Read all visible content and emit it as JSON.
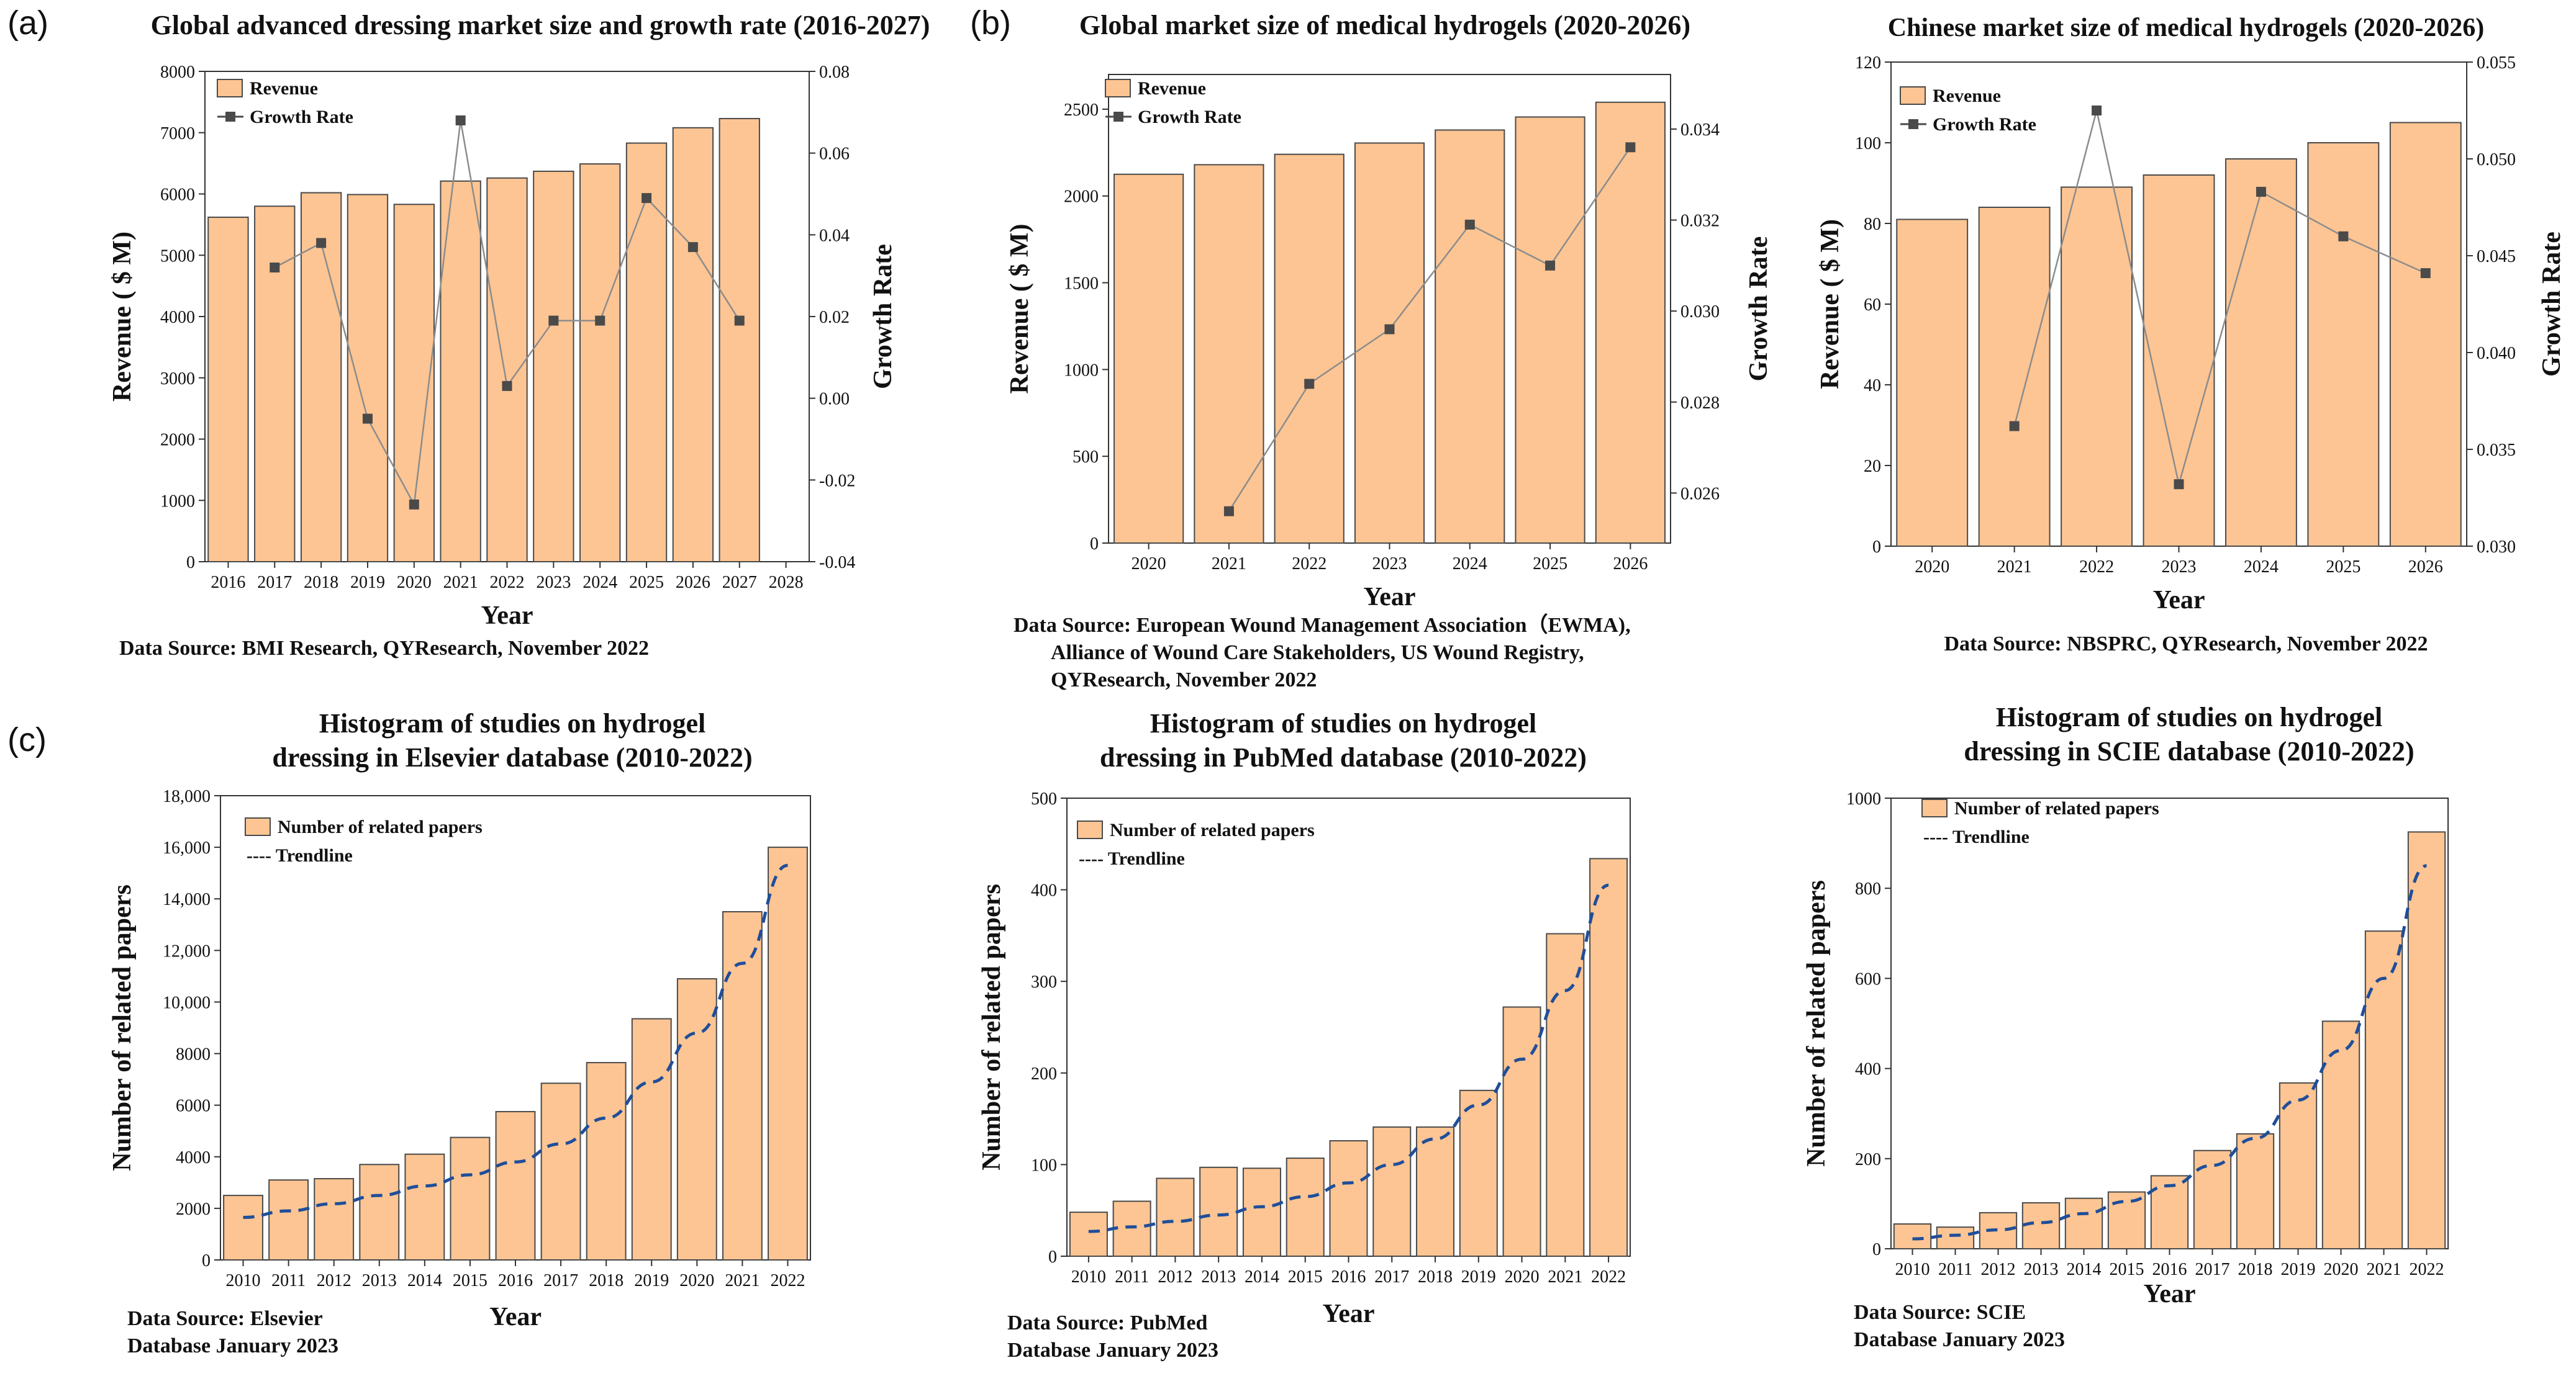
{
  "panel_labels": {
    "a": "(a)",
    "b": "(b)",
    "c": "(c)"
  },
  "colors": {
    "bar_fill": "#FDC593",
    "bar_stroke": "#4a4a4a",
    "line": "#8c8c8c",
    "marker": "#4a4a4a",
    "trend": "#1F4E9A",
    "axis": "#333333",
    "text": "#111111"
  },
  "chart_data": [
    {
      "id": "a",
      "type": "bar",
      "title": "Global advanced dressing market size and growth rate (2016-2027)",
      "xlabel": "Year",
      "ylabel": "Revenue ( $ M)",
      "y2label": "Growth Rate",
      "categories": [
        "2016",
        "2017",
        "2018",
        "2019",
        "2020",
        "2021",
        "2022",
        "2023",
        "2024",
        "2025",
        "2026",
        "2027"
      ],
      "x_ticks": [
        "2016",
        "2017",
        "2018",
        "2019",
        "2020",
        "2021",
        "2022",
        "2023",
        "2024",
        "2025",
        "2026",
        "2027",
        "2028"
      ],
      "ylim": [
        0,
        8000
      ],
      "y_ticks": [
        "0",
        "1000",
        "2000",
        "3000",
        "4000",
        "5000",
        "6000",
        "7000",
        "8000"
      ],
      "y2lim": [
        -0.04,
        0.08
      ],
      "y2_ticks": [
        "-0.04",
        "-0.02",
        "0.00",
        "0.02",
        "0.04",
        "0.06",
        "0.08"
      ],
      "series": [
        {
          "name": "Revenue",
          "values": [
            5620,
            5800,
            6020,
            5990,
            5830,
            6210,
            6260,
            6370,
            6490,
            6830,
            7080,
            7230
          ]
        },
        {
          "name": "Growth Rate",
          "values": [
            null,
            0.032,
            0.038,
            -0.005,
            -0.026,
            0.068,
            0.003,
            0.019,
            0.019,
            0.049,
            0.037,
            0.019
          ]
        }
      ],
      "legend": [
        "Revenue",
        "Growth Rate"
      ],
      "source": [
        "Data Source: BMI Research, QYResearch, November 2022"
      ]
    },
    {
      "id": "b",
      "type": "bar",
      "title": "Global market size of medical hydrogels (2020-2026)",
      "xlabel": "Year",
      "ylabel": "Revenue ( $ M)",
      "y2label": "Growth Rate",
      "categories": [
        "2020",
        "2021",
        "2022",
        "2023",
        "2024",
        "2025",
        "2026"
      ],
      "x_ticks": [
        "2020",
        "2021",
        "2022",
        "2023",
        "2024",
        "2025",
        "2026"
      ],
      "ylim": [
        0,
        2700
      ],
      "y_ticks": [
        "0",
        "500",
        "1000",
        "1500",
        "2000",
        "2500"
      ],
      "y2lim": [
        0.0249,
        0.0352
      ],
      "y2_ticks": [
        "0.026",
        "0.028",
        "0.030",
        "0.032",
        "0.034"
      ],
      "series": [
        {
          "name": "Revenue",
          "values": [
            2125,
            2180,
            2240,
            2305,
            2380,
            2455,
            2540
          ]
        },
        {
          "name": "Growth Rate",
          "values": [
            null,
            0.0256,
            0.0284,
            0.0296,
            0.0319,
            0.031,
            0.0336
          ]
        }
      ],
      "legend": [
        "Revenue",
        "Growth Rate"
      ],
      "source": [
        "Data Source: European Wound Management Association（EWMA),",
        "Alliance of Wound Care Stakeholders, US Wound Registry,",
        "QYResearch, November 2022"
      ]
    },
    {
      "id": "b2",
      "type": "bar",
      "title": "Chinese market size of medical hydrogels (2020-2026)",
      "xlabel": "Year",
      "ylabel": "Revenue ( $ M)",
      "y2label": "Growth Rate",
      "categories": [
        "2020",
        "2021",
        "2022",
        "2023",
        "2024",
        "2025",
        "2026"
      ],
      "x_ticks": [
        "2020",
        "2021",
        "2022",
        "2023",
        "2024",
        "2025",
        "2026"
      ],
      "ylim": [
        0,
        120
      ],
      "y_ticks": [
        "0",
        "20",
        "40",
        "60",
        "80",
        "100",
        "120"
      ],
      "y2lim": [
        0.03,
        0.055
      ],
      "y2_ticks": [
        "0.030",
        "0.035",
        "0.040",
        "0.045",
        "0.050",
        "0.055"
      ],
      "series": [
        {
          "name": "Revenue",
          "values": [
            81,
            84,
            89,
            92,
            96,
            100,
            105
          ]
        },
        {
          "name": "Growth Rate",
          "values": [
            null,
            0.0362,
            0.0525,
            0.0332,
            0.0483,
            0.046,
            0.0441
          ]
        }
      ],
      "legend": [
        "Revenue",
        "Growth Rate"
      ],
      "source": [
        "Data Source: NBSPRC, QYResearch, November 2022"
      ]
    },
    {
      "id": "c1",
      "type": "bar",
      "title": "Histogram of studies on hydrogel|dressing in Elsevier database (2010-2022)",
      "title_lines": [
        "Histogram of studies on hydrogel",
        "dressing in Elsevier database (2010-2022)"
      ],
      "xlabel": "Year",
      "ylabel": "Number of related papers",
      "categories": [
        "2010",
        "2011",
        "2012",
        "2013",
        "2014",
        "2015",
        "2016",
        "2017",
        "2018",
        "2019",
        "2020",
        "2021",
        "2022"
      ],
      "x_ticks": [
        "2010",
        "2011",
        "2012",
        "2013",
        "2014",
        "2015",
        "2016",
        "2017",
        "2018",
        "2019",
        "2020",
        "2021",
        "2022"
      ],
      "ylim": [
        0,
        18000
      ],
      "y_ticks": [
        "0",
        "2000",
        "4000",
        "6000",
        "8000",
        "10,000",
        "12,000",
        "14,000",
        "16,000",
        "18,000"
      ],
      "series": [
        {
          "name": "Number of related papers",
          "values": [
            2500,
            3100,
            3150,
            3700,
            4100,
            4750,
            5750,
            6850,
            7650,
            9350,
            10900,
            13500,
            16000
          ]
        },
        {
          "name": "Trendline",
          "values": [
            1650,
            1900,
            2180,
            2500,
            2870,
            3300,
            3800,
            4500,
            5500,
            6900,
            8800,
            11500,
            15300
          ]
        }
      ],
      "legend": [
        "Number of related papers",
        "---- Trendline"
      ],
      "source": [
        "Data Source: Elsevier",
        "Database January 2023"
      ]
    },
    {
      "id": "c2",
      "type": "bar",
      "title": "Histogram of studies on hydrogel|dressing in PubMed database (2010-2022)",
      "title_lines": [
        "Histogram of studies on hydrogel",
        "dressing in PubMed database (2010-2022)"
      ],
      "xlabel": "Year",
      "ylabel": "Number of related papers",
      "categories": [
        "2010",
        "2011",
        "2012",
        "2013",
        "2014",
        "2015",
        "2016",
        "2017",
        "2018",
        "2019",
        "2020",
        "2021",
        "2022"
      ],
      "x_ticks": [
        "2010",
        "2011",
        "2012",
        "2013",
        "2014",
        "2015",
        "2016",
        "2017",
        "2018",
        "2019",
        "2020",
        "2021",
        "2022"
      ],
      "ylim": [
        0,
        500
      ],
      "y_ticks": [
        "0",
        "100",
        "200",
        "300",
        "400",
        "500"
      ],
      "series": [
        {
          "name": "Number of related papers",
          "values": [
            48,
            60,
            85,
            97,
            96,
            107,
            126,
            141,
            141,
            181,
            272,
            352,
            434
          ]
        },
        {
          "name": "Trendline",
          "values": [
            27,
            32,
            38,
            45,
            54,
            65,
            80,
            100,
            128,
            165,
            215,
            290,
            405
          ]
        }
      ],
      "legend": [
        "Number of related papers",
        "---- Trendline"
      ],
      "source": [
        "Data Source: PubMed",
        "Database January 2023"
      ]
    },
    {
      "id": "c3",
      "type": "bar",
      "title": "Histogram of studies on hydrogel|dressing in SCIE database (2010-2022)",
      "title_lines": [
        "Histogram of studies on hydrogel",
        "dressing in SCIE database (2010-2022)"
      ],
      "xlabel": "Year",
      "ylabel": "Number of related papers",
      "categories": [
        "2010",
        "2011",
        "2012",
        "2013",
        "2014",
        "2015",
        "2016",
        "2017",
        "2018",
        "2019",
        "2020",
        "2021",
        "2022"
      ],
      "x_ticks": [
        "2010",
        "2011",
        "2012",
        "2013",
        "2014",
        "2015",
        "2016",
        "2017",
        "2018",
        "2019",
        "2020",
        "2021",
        "2022"
      ],
      "ylim": [
        0,
        1000
      ],
      "y_ticks": [
        "0",
        "200",
        "400",
        "600",
        "800",
        "1000"
      ],
      "series": [
        {
          "name": "Number of related papers",
          "values": [
            55,
            48,
            80,
            102,
            112,
            126,
            162,
            218,
            255,
            368,
            505,
            705,
            925
          ]
        },
        {
          "name": "Trendline",
          "values": [
            22,
            30,
            42,
            58,
            78,
            105,
            140,
            185,
            245,
            330,
            440,
            600,
            850
          ]
        }
      ],
      "legend": [
        "Number of related papers",
        "---- Trendline"
      ],
      "source": [
        "Data Source: SCIE",
        "Database January 2023"
      ]
    }
  ]
}
